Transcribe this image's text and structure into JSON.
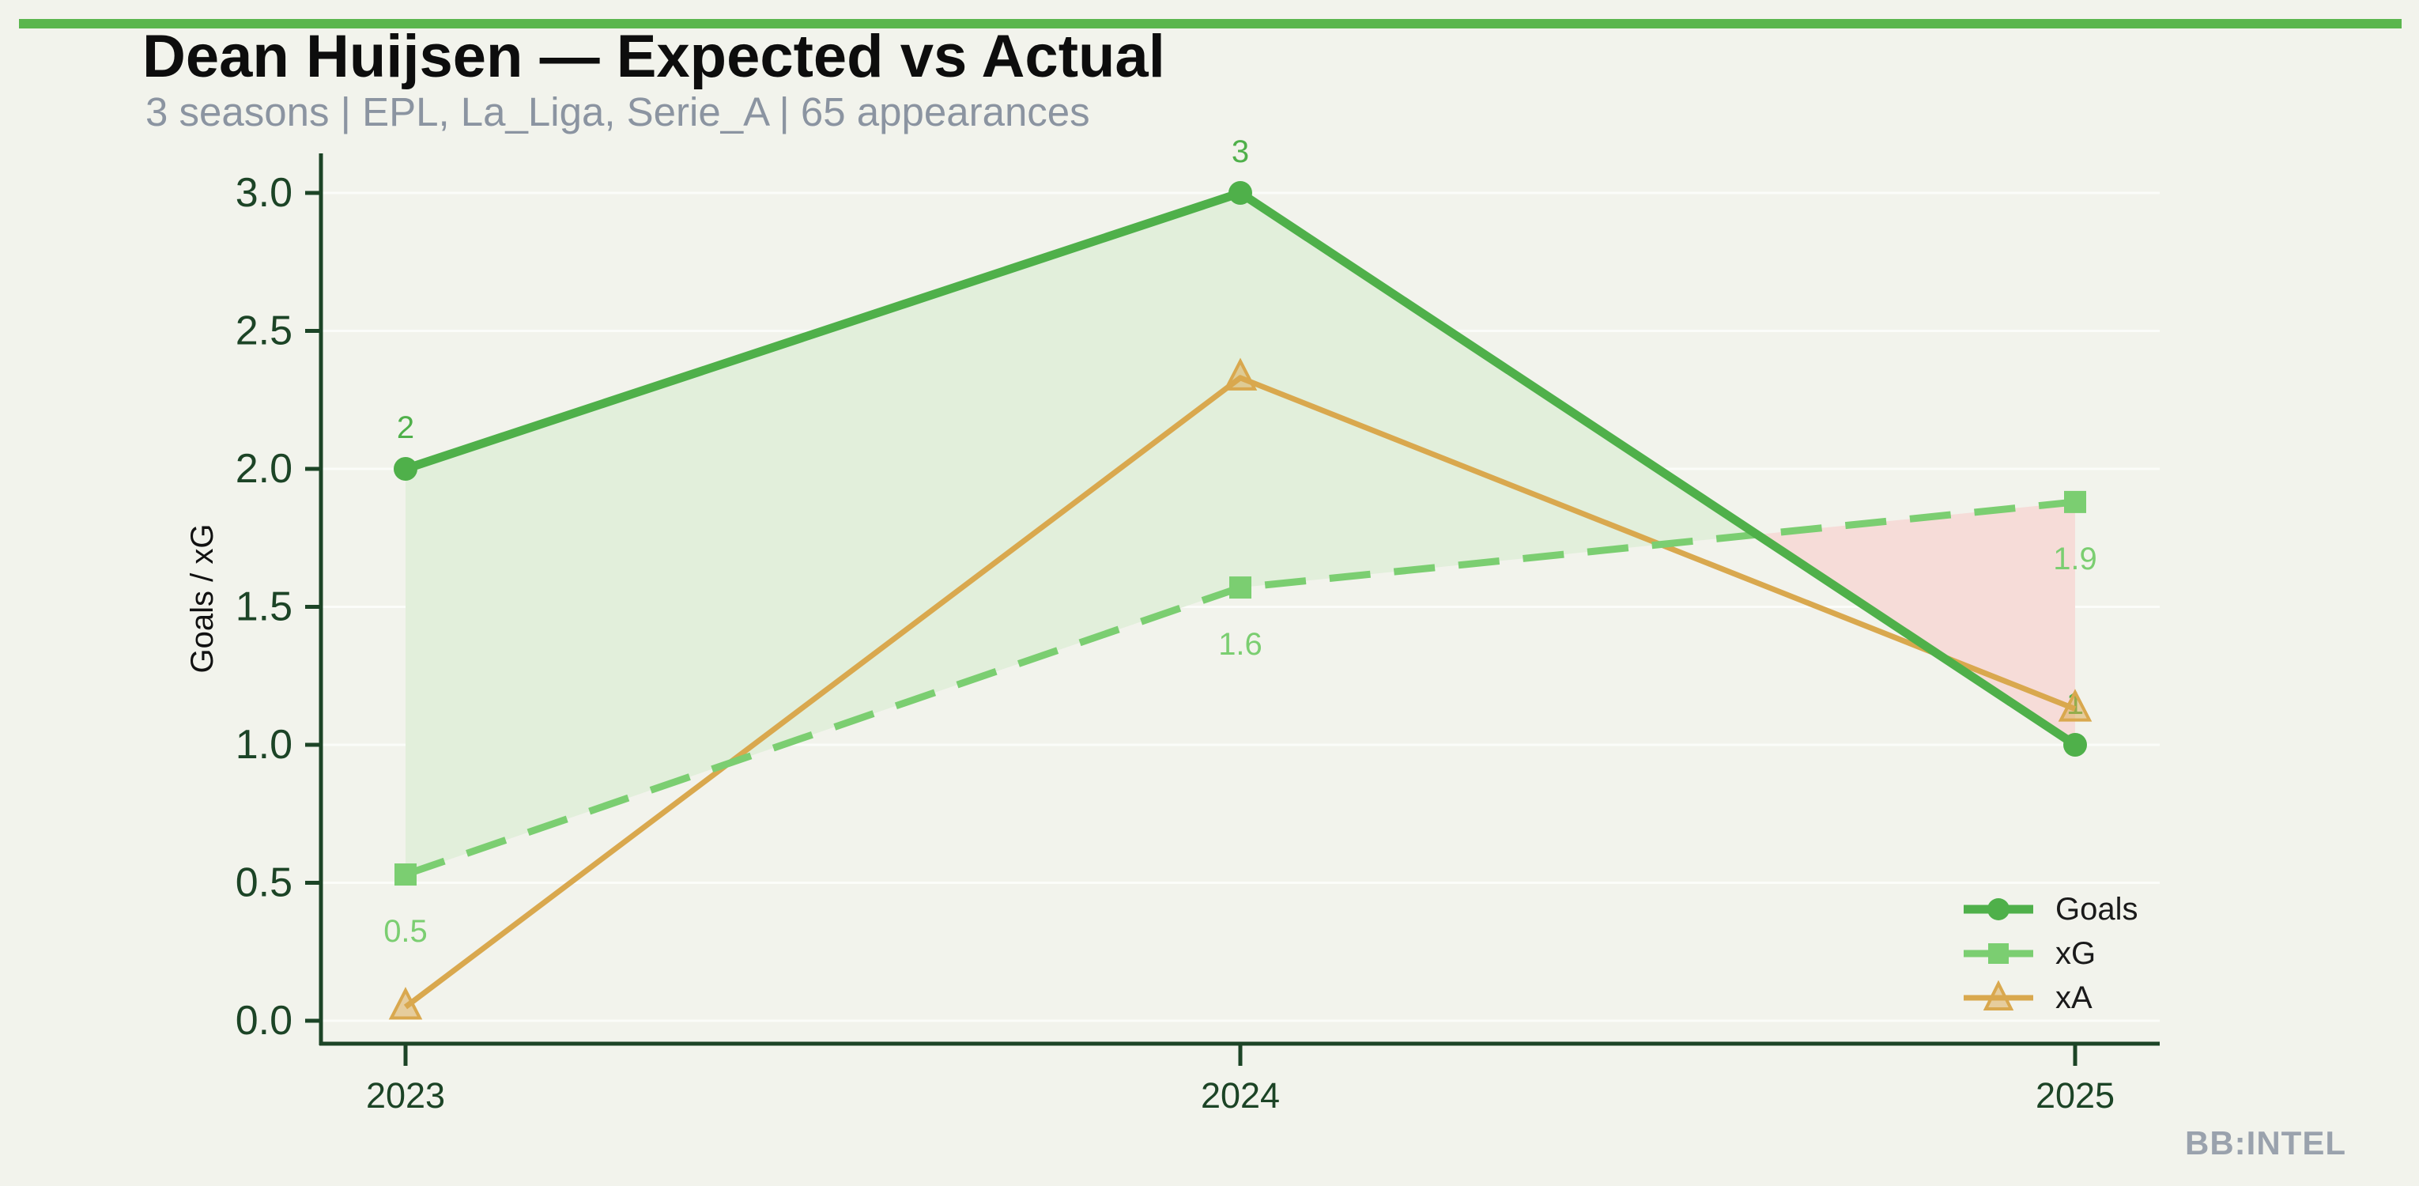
{
  "header": {
    "title": "Dean Huijsen — Expected vs Actual",
    "subtitle": "3 seasons | EPL, La_Liga, Serie_A | 65 appearances"
  },
  "watermark": "BB:INTEL",
  "theme": {
    "background": "#f2f3ec",
    "accent_bar": "#5bb64e",
    "axis": "#1c4426",
    "tick_label": "#1c4426",
    "grid": "rgba(255,255,255,0.7)",
    "title_color": "#0d0d0d",
    "subtitle_color": "#8b94a1",
    "watermark_color": "#9aa2ad",
    "legend_text": "#1a1a1a",
    "ylabel_color": "#111111"
  },
  "chart_data": {
    "type": "line",
    "x": [
      2023,
      2024,
      2025
    ],
    "xtick_labels": [
      "2023",
      "2024",
      "2025"
    ],
    "yticks": [
      0.0,
      0.5,
      1.0,
      1.5,
      2.0,
      2.5,
      3.0
    ],
    "ytick_labels": [
      "0.0",
      "0.5",
      "1.0",
      "1.5",
      "2.0",
      "2.5",
      "3.0"
    ],
    "ylim": [
      -0.12,
      3.25
    ],
    "ylabel": "Goals / xG",
    "xlabel": "",
    "grid": "horizontal-faint",
    "legend_position": "lower-right",
    "series": [
      {
        "name": "Goals",
        "values": [
          2,
          3,
          1
        ],
        "point_labels": [
          "2",
          "3",
          "1"
        ],
        "label_position": "above",
        "color": "#4fb04a",
        "marker": "circle",
        "line_style": "solid"
      },
      {
        "name": "xG",
        "values": [
          0.53,
          1.57,
          1.88
        ],
        "point_labels": [
          "0.5",
          "1.6",
          "1.9"
        ],
        "label_position": "below",
        "color": "#7bce71",
        "marker": "square",
        "line_style": "dashed"
      },
      {
        "name": "xA",
        "values": [
          0.05,
          2.33,
          1.13
        ],
        "point_labels": [],
        "label_position": "none",
        "color": "#d9a84e",
        "marker": "triangle",
        "line_style": "solid"
      }
    ],
    "fill_between": {
      "upper": "Goals",
      "lower": "xG",
      "positive_color": "#e2efdb",
      "negative_color": "#f6dcd8"
    }
  }
}
